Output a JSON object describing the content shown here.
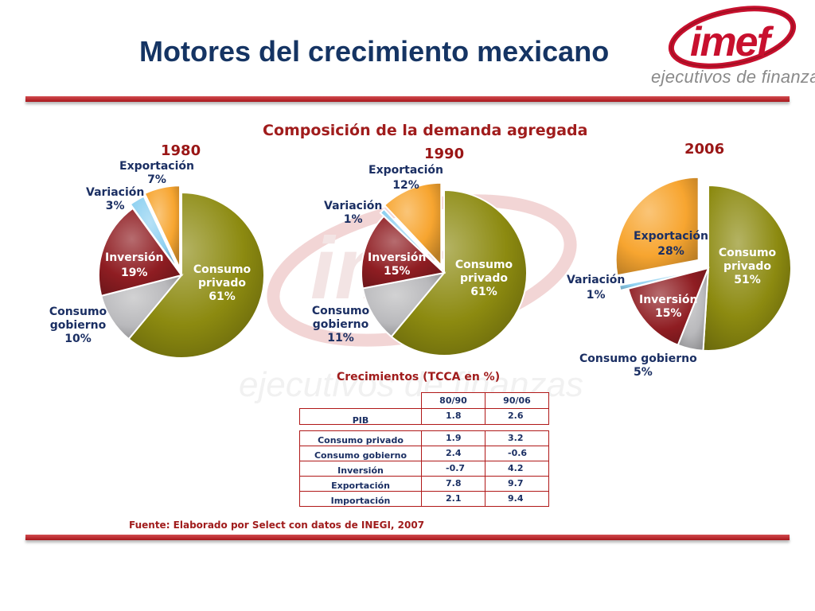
{
  "title": "Motores del crecimiento mexicano",
  "logo": {
    "text": "imef",
    "tagline": "ejecutivos de finanzas",
    "colors": [
      "#c8102e",
      "#7a7a7a"
    ]
  },
  "chart_heading": "Composición de la demanda agregada",
  "chart_data": [
    {
      "type": "pie",
      "title": "1980",
      "slices": [
        {
          "label": "Consumo privado",
          "value": 61,
          "display": "61%",
          "color": "#8c8a10"
        },
        {
          "label": "Consumo gobierno",
          "value": 10,
          "display": "10%",
          "color": "#b9b9bc"
        },
        {
          "label": "Inversión",
          "value": 19,
          "display": "19%",
          "color": "#8f1d22"
        },
        {
          "label": "Variación",
          "value": 3,
          "display": "3%",
          "color": "#8fd1f1"
        },
        {
          "label": "Exportación",
          "value": 7,
          "display": "7%",
          "color": "#f7a530"
        }
      ]
    },
    {
      "type": "pie",
      "title": "1990",
      "slices": [
        {
          "label": "Consumo privado",
          "value": 61,
          "display": "61%",
          "color": "#8c8a10"
        },
        {
          "label": "Consumo gobierno",
          "value": 11,
          "display": "11%",
          "color": "#b9b9bc"
        },
        {
          "label": "Inversión",
          "value": 15,
          "display": "15%",
          "color": "#8f1d22"
        },
        {
          "label": "Variación",
          "value": 1,
          "display": "1%",
          "color": "#8fd1f1"
        },
        {
          "label": "Exportación",
          "value": 12,
          "display": "12%",
          "color": "#f7a530"
        }
      ]
    },
    {
      "type": "pie",
      "title": "2006",
      "slices": [
        {
          "label": "Consumo privado",
          "value": 51,
          "display": "51%",
          "color": "#8c8a10"
        },
        {
          "label": "Consumo gobierno",
          "value": 5,
          "display": "5%",
          "color": "#b9b9bc"
        },
        {
          "label": "Inversión",
          "value": 15,
          "display": "15%",
          "color": "#8f1d22"
        },
        {
          "label": "Variación",
          "value": 1,
          "display": "1%",
          "color": "#8fd1f1"
        },
        {
          "label": "Exportación",
          "value": 28,
          "display": "28%",
          "color": "#f7a530"
        }
      ]
    },
    {
      "type": "table",
      "title": "Crecimientos (TCCA en %)",
      "columns": [
        "80/90",
        "90/06"
      ],
      "rows": [
        {
          "label": "PIB",
          "values": [
            "1.8",
            "2.6"
          ]
        },
        {
          "label": "Consumo privado",
          "values": [
            "1.9",
            "3.2"
          ]
        },
        {
          "label": "Consumo gobierno",
          "values": [
            "2.4",
            "-0.6"
          ]
        },
        {
          "label": "Inversión",
          "values": [
            "-0.7",
            "4.2"
          ]
        },
        {
          "label": "Exportación",
          "values": [
            "7.8",
            "9.7"
          ]
        },
        {
          "label": "Importación",
          "values": [
            "2.1",
            "9.4"
          ]
        }
      ]
    }
  ],
  "source": "Fuente: Elaborado por Select con datos de INEGI, 2007",
  "colors": {
    "title": "#153463",
    "accent_red": "#a01c1c",
    "rule": "#c0272d"
  }
}
